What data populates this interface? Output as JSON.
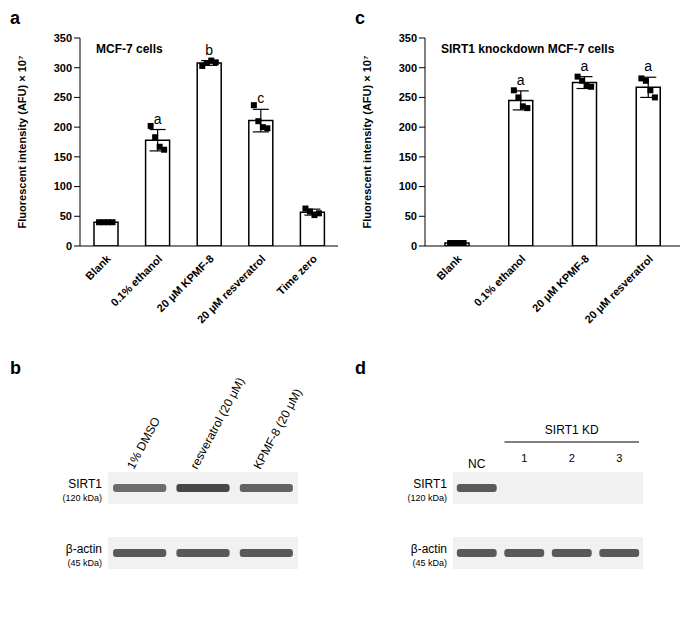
{
  "panel_labels": [
    "a",
    "b",
    "c",
    "d"
  ],
  "chart_data": [
    {
      "type": "bar",
      "title": "MCF-7 cells",
      "y_label": "Fluorescent intensity (AFU) × 10⁷",
      "categories": [
        "Blank",
        "0.1% ethanol",
        "20 μM KPMF-8",
        "20 μM resveratrol",
        "Time zero"
      ],
      "values": [
        40,
        178,
        308,
        211,
        57
      ],
      "error": [
        1,
        18,
        4,
        19,
        5
      ],
      "points": [
        [
          40,
          40,
          40,
          40
        ],
        [
          202,
          183,
          167,
          162
        ],
        [
          303,
          308,
          312,
          309
        ],
        [
          237,
          210,
          200,
          198
        ],
        [
          63,
          58,
          52,
          55
        ]
      ],
      "annotations": [
        null,
        "a",
        "b",
        "c",
        null
      ],
      "color": "#ffffff",
      "marker": "square",
      "ylim": [
        0,
        350
      ],
      "yticks": [
        0,
        50,
        100,
        150,
        200,
        250,
        300,
        350
      ]
    },
    {
      "type": "bar",
      "title": "SIRT1 knockdown MCF-7 cells",
      "y_label": "Fluorescent intensity (AFU) × 10⁷",
      "categories": [
        "Blank",
        "0.1% ethanol",
        "20 μM KPMF-8",
        "20 μM resveratrol"
      ],
      "values": [
        5,
        245,
        275,
        267
      ],
      "error": [
        1,
        16,
        10,
        17
      ],
      "points": [
        [
          5,
          5,
          5,
          5
        ],
        [
          262,
          250,
          235,
          232
        ],
        [
          285,
          278,
          270,
          268
        ],
        [
          282,
          278,
          262,
          250
        ]
      ],
      "annotations": [
        null,
        "a",
        "a",
        "a"
      ],
      "color": "#ffffff",
      "marker": "square",
      "ylim": [
        0,
        350
      ],
      "yticks": [
        0,
        50,
        100,
        150,
        200,
        250,
        300,
        350
      ]
    }
  ],
  "blots": [
    {
      "lanes": [
        "1% DMSO",
        "resveratrol (20 μM)",
        "KPMF-8 (20 μM)"
      ],
      "rows": [
        {
          "name": "SIRT1",
          "size": "(120 kDa)",
          "bands": [
            0.7,
            0.9,
            0.75
          ]
        },
        {
          "name": "β-actin",
          "size": "(45 kDa)",
          "bands": [
            0.8,
            0.8,
            0.8
          ]
        }
      ]
    },
    {
      "lanes": [
        "NC"
      ],
      "group": {
        "label": "SIRT1 KD",
        "lanes": [
          "1",
          "2",
          "3"
        ]
      },
      "rows": [
        {
          "name": "SIRT1",
          "size": "(120 kDa)",
          "bands": [
            0.8,
            0,
            0,
            0
          ]
        },
        {
          "name": "β-actin",
          "size": "(45 kDa)",
          "bands": [
            0.8,
            0.8,
            0.8,
            0.8
          ]
        }
      ]
    }
  ]
}
